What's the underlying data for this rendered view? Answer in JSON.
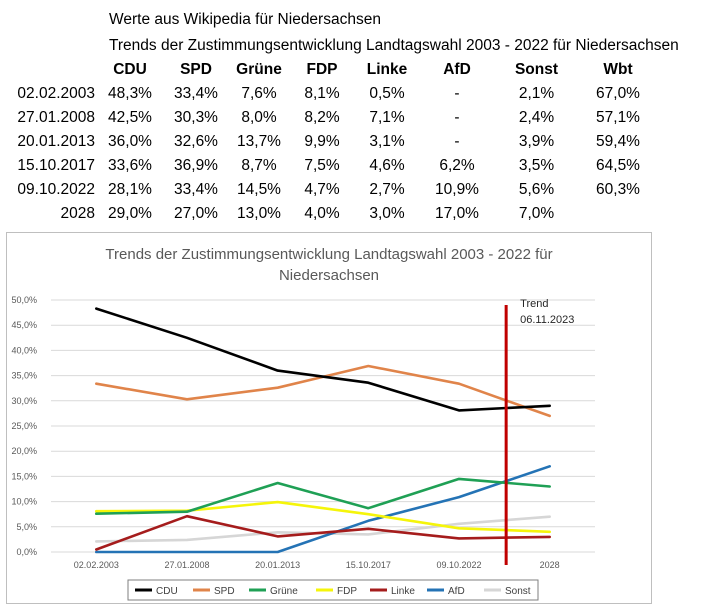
{
  "header": {
    "line1": "Werte aus Wikipedia für Niedersachsen",
    "line2": "Trends der Zustimmungsentwicklung Landtagswahl 2003 - 2022 für Niedersachsen"
  },
  "table": {
    "columns": [
      "",
      "CDU",
      "SPD",
      "Grüne",
      "FDP",
      "Linke",
      "AfD",
      "Sonst",
      "Wbt"
    ],
    "rows": [
      [
        "02.02.2003",
        "48,3%",
        "33,4%",
        "7,6%",
        "8,1%",
        "0,5%",
        "-",
        "2,1%",
        "67,0%"
      ],
      [
        "27.01.2008",
        "42,5%",
        "30,3%",
        "8,0%",
        "8,2%",
        "7,1%",
        "-",
        "2,4%",
        "57,1%"
      ],
      [
        "20.01.2013",
        "36,0%",
        "32,6%",
        "13,7%",
        "9,9%",
        "3,1%",
        "-",
        "3,9%",
        "59,4%"
      ],
      [
        "15.10.2017",
        "33,6%",
        "36,9%",
        "8,7%",
        "7,5%",
        "4,6%",
        "6,2%",
        "3,5%",
        "64,5%"
      ],
      [
        "09.10.2022",
        "28,1%",
        "33,4%",
        "14,5%",
        "4,7%",
        "2,7%",
        "10,9%",
        "5,6%",
        "60,3%"
      ],
      [
        "2028",
        "29,0%",
        "27,0%",
        "13,0%",
        "4,0%",
        "3,0%",
        "17,0%",
        "7,0%",
        ""
      ]
    ]
  },
  "chart_data": {
    "type": "line",
    "title": "Trends der Zustimmungsentwicklung Landtagswahl 2003 - 2022 für Niedersachsen",
    "title_lines": [
      "Trends der Zustimmungsentwicklung Landtagswahl 2003 - 2022 für",
      "Niedersachsen"
    ],
    "categories": [
      "02.02.2003",
      "27.01.2008",
      "20.01.2013",
      "15.10.2017",
      "09.10.2022",
      "2028"
    ],
    "ylim": [
      0,
      50
    ],
    "yticks": [
      "0,0%",
      "5,0%",
      "10,0%",
      "15,0%",
      "20,0%",
      "25,0%",
      "30,0%",
      "35,0%",
      "40,0%",
      "45,0%",
      "50,0%"
    ],
    "grid": true,
    "legend_position": "bottom",
    "series": [
      {
        "name": "CDU",
        "color": "#000000",
        "values": [
          48.3,
          42.5,
          36.0,
          33.6,
          28.1,
          29.0
        ]
      },
      {
        "name": "SPD",
        "color": "#E0844A",
        "values": [
          33.4,
          30.3,
          32.6,
          36.9,
          33.4,
          27.0
        ]
      },
      {
        "name": "Grüne",
        "color": "#1FA055",
        "values": [
          7.6,
          8.0,
          13.7,
          8.7,
          14.5,
          13.0
        ]
      },
      {
        "name": "FDP",
        "color": "#F5F50A",
        "values": [
          8.1,
          8.2,
          9.9,
          7.5,
          4.7,
          4.0
        ]
      },
      {
        "name": "Linke",
        "color": "#A51C1C",
        "values": [
          0.5,
          7.1,
          3.1,
          4.6,
          2.7,
          3.0
        ]
      },
      {
        "name": "AfD",
        "color": "#2473B5",
        "values": [
          0,
          0,
          0,
          6.2,
          10.9,
          17.0
        ]
      },
      {
        "name": "Sonst",
        "color": "#D6D6D6",
        "values": [
          2.1,
          2.4,
          3.9,
          3.5,
          5.6,
          7.0
        ]
      }
    ],
    "marker": {
      "label_lines": [
        "Trend",
        "06.11.2023"
      ],
      "color": "#C00000",
      "x_position": "between 09.10.2022 and 2028"
    }
  }
}
